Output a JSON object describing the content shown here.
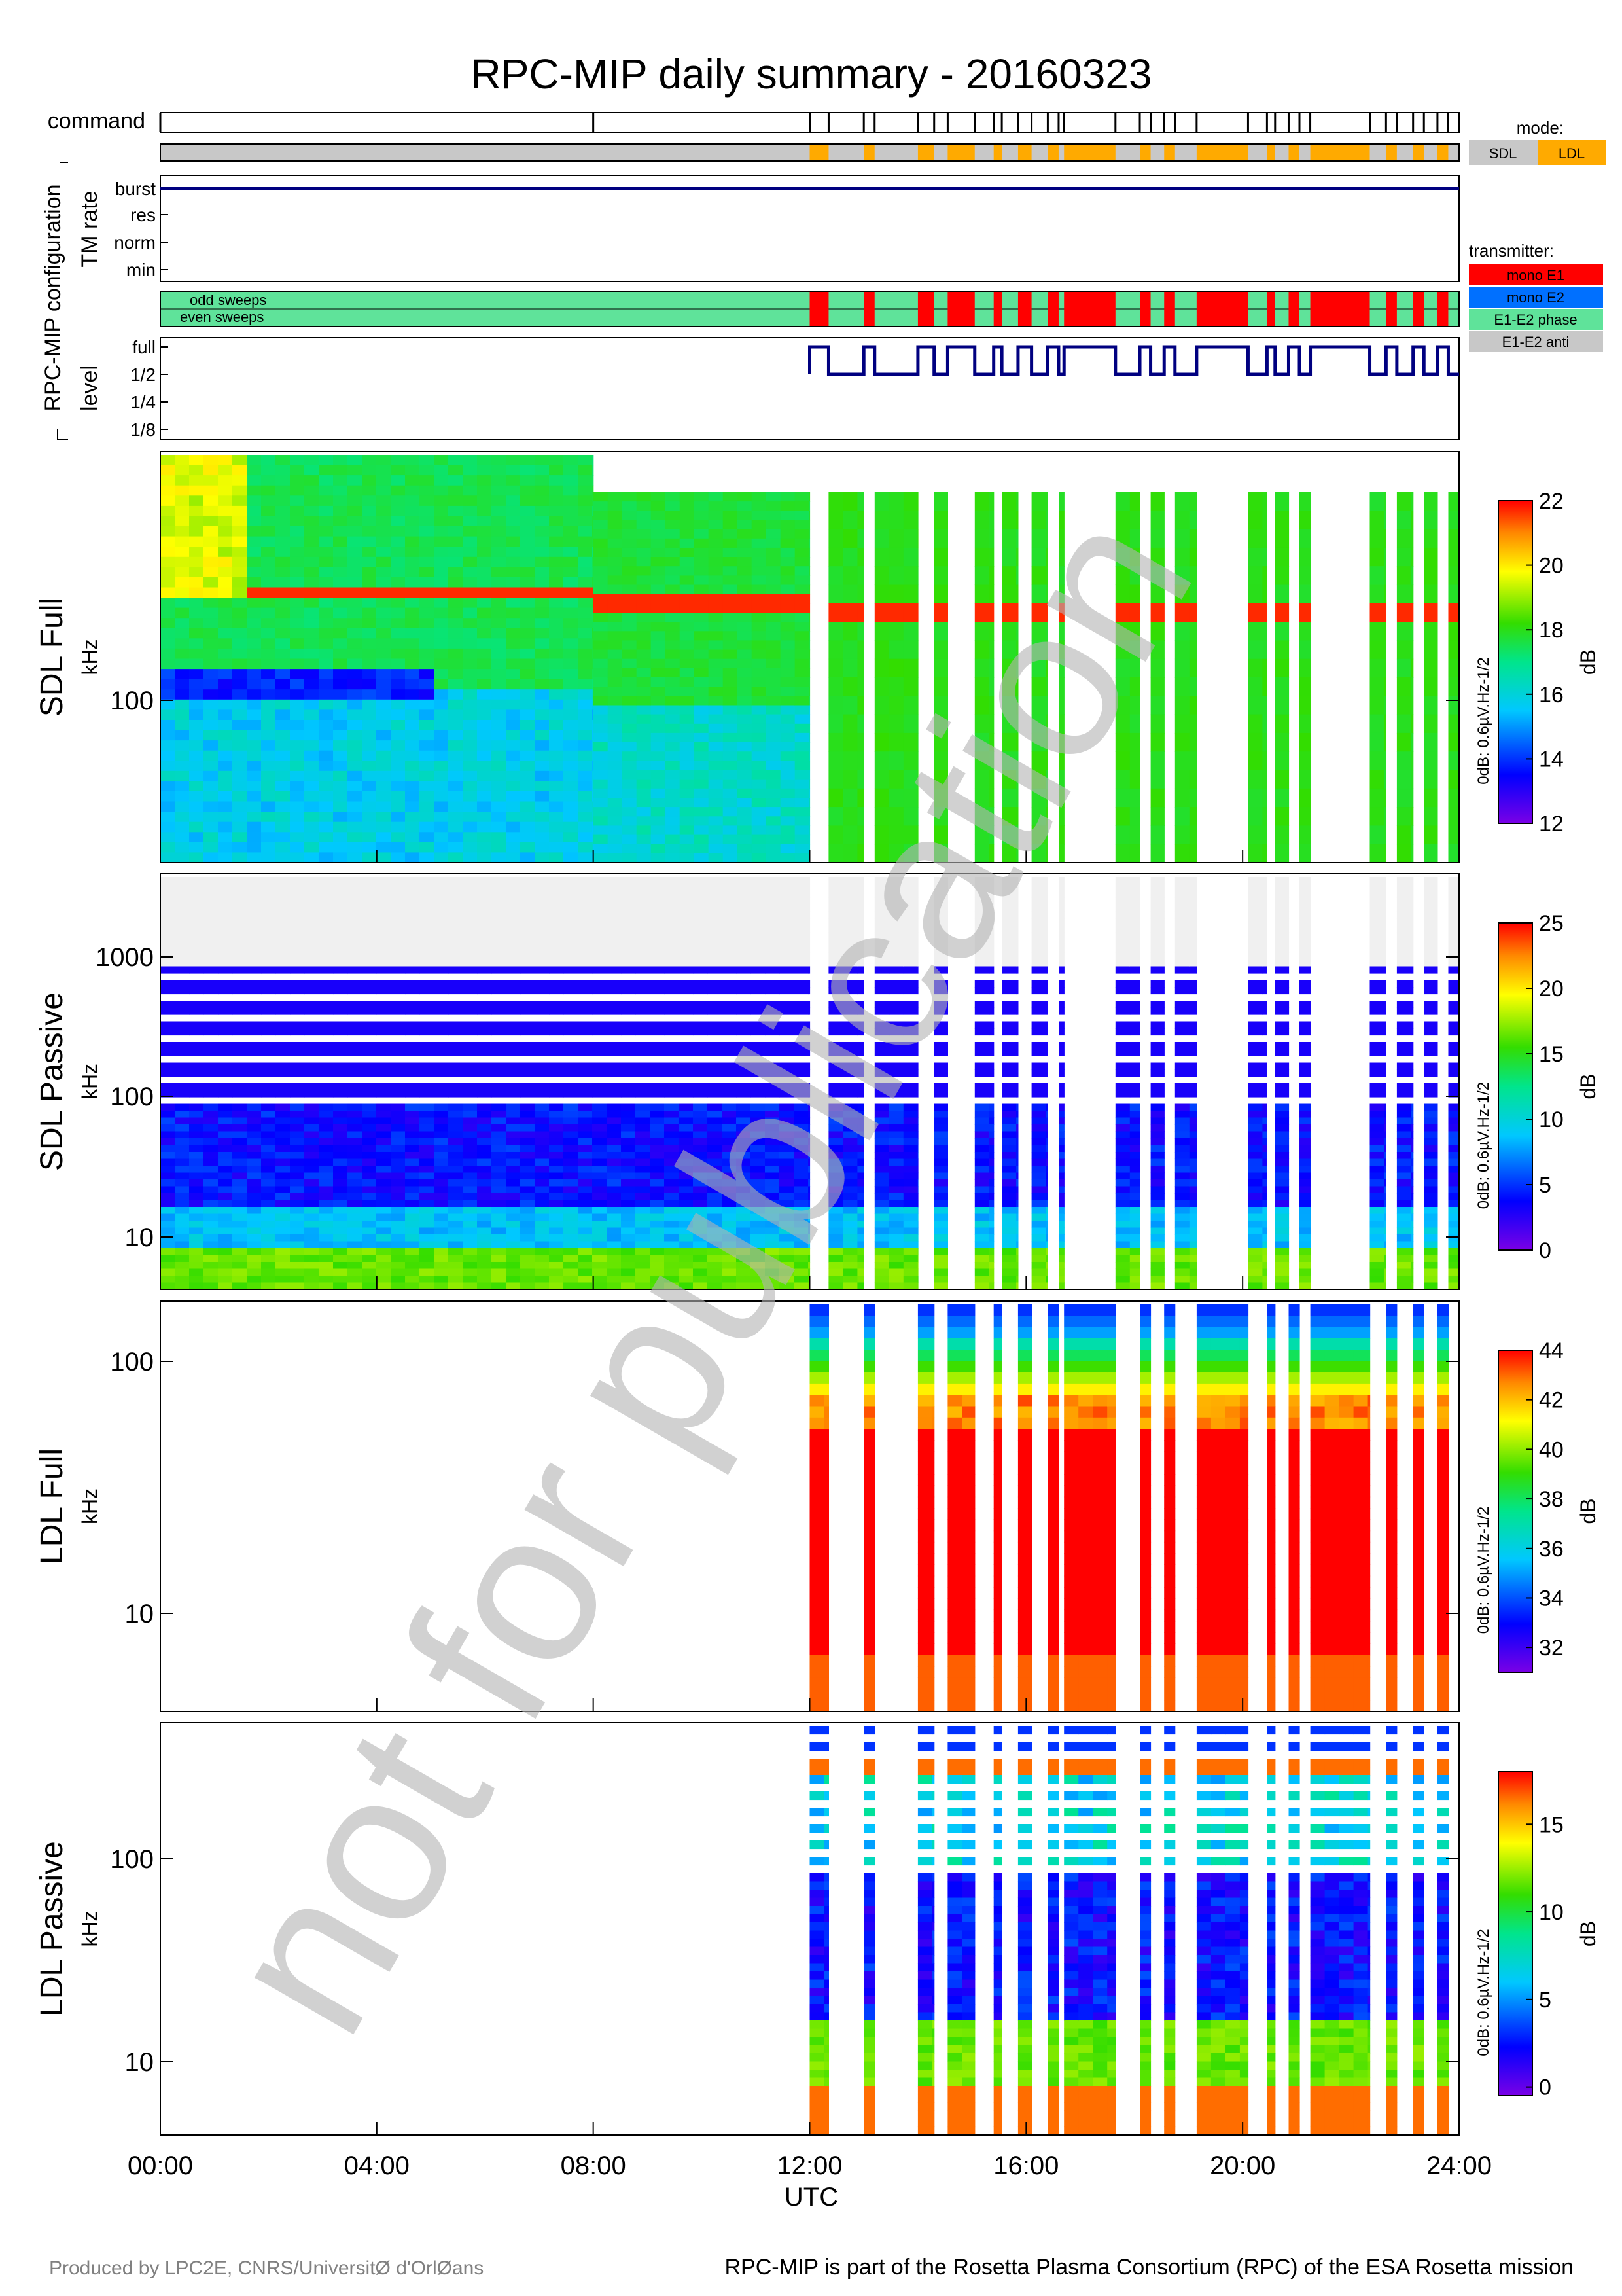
{
  "title": "RPC-MIP daily summary - 20160323",
  "watermark": "not for publication",
  "footer": {
    "left": "Produced by LPC2E, CNRS/UniversitØ d'OrlØans",
    "right": "RPC-MIP is part of the Rosetta Plasma Consortium (RPC) of the ESA Rosetta mission"
  },
  "config": {
    "group_label": "RPC-MIP configuration",
    "command_label": "command",
    "tm_label": "TM rate",
    "tm_ticks": [
      "burst",
      "res",
      "norm",
      "min"
    ],
    "sweep_labels": [
      "odd sweeps",
      "even sweeps"
    ],
    "level_label": "level",
    "level_ticks": [
      "full",
      "1/2",
      "1/4",
      "1/8"
    ],
    "mode_legend": {
      "title": "mode:",
      "items": [
        {
          "label": "SDL",
          "color": "#c8c8c8"
        },
        {
          "label": "LDL",
          "color": "#ffaa00"
        }
      ]
    },
    "transmitter_legend": {
      "title": "transmitter:",
      "items": [
        {
          "label": "mono E1",
          "color": "#ff0000"
        },
        {
          "label": "mono E2",
          "color": "#0070ff"
        },
        {
          "label": "E1-E2 phase",
          "color": "#5fe39a"
        },
        {
          "label": "E1-E2 anti",
          "color": "#c8c8c8"
        }
      ]
    },
    "ldl_intervals_utc": [
      [
        12.0,
        12.35
      ],
      [
        13.0,
        13.2
      ],
      [
        14.0,
        14.3
      ],
      [
        14.55,
        15.05
      ],
      [
        15.4,
        15.55
      ],
      [
        15.85,
        16.1
      ],
      [
        16.4,
        16.6
      ],
      [
        16.7,
        17.65
      ],
      [
        18.1,
        18.3
      ],
      [
        18.55,
        18.75
      ],
      [
        19.15,
        20.1
      ],
      [
        20.45,
        20.6
      ],
      [
        20.85,
        21.05
      ],
      [
        21.25,
        22.35
      ],
      [
        22.65,
        22.85
      ],
      [
        23.15,
        23.35
      ],
      [
        23.6,
        23.8
      ]
    ],
    "command_times_utc": [
      0.0,
      8.0,
      12.0,
      12.35,
      13.0,
      13.2,
      14.0,
      14.3,
      14.55,
      15.05,
      15.4,
      15.55,
      15.85,
      16.1,
      16.4,
      16.6,
      16.7,
      17.65,
      18.1,
      18.3,
      18.55,
      18.75,
      19.15,
      20.1,
      20.45,
      20.6,
      20.85,
      21.05,
      21.25,
      22.35,
      22.65,
      22.85,
      23.15,
      23.35,
      23.6,
      23.8,
      24.0
    ],
    "tm_rate_value": "burst"
  },
  "chart_data": [
    {
      "type": "heatmap",
      "panel": "SDL Full",
      "ylabel": "kHz",
      "yticks": [
        "100"
      ],
      "colorbar": {
        "min": 12,
        "max": 22,
        "ticks": [
          12,
          14,
          16,
          18,
          20,
          22
        ],
        "unit": "dB",
        "ref": "0dB: 0.6µV.Hz-1/2"
      },
      "gap_intervals_utc": [
        [
          12.0,
          12.35
        ],
        [
          13.0,
          13.2
        ],
        [
          14.0,
          14.3
        ],
        [
          14.55,
          15.05
        ],
        [
          15.4,
          15.55
        ],
        [
          15.85,
          16.1
        ],
        [
          16.4,
          16.6
        ],
        [
          16.7,
          17.65
        ],
        [
          18.1,
          18.3
        ],
        [
          18.55,
          18.75
        ],
        [
          19.15,
          20.1
        ],
        [
          20.45,
          20.6
        ],
        [
          20.85,
          21.05
        ],
        [
          21.25,
          22.35
        ],
        [
          22.65,
          22.85
        ],
        [
          23.15,
          23.35
        ],
        [
          23.6,
          23.8
        ]
      ]
    },
    {
      "type": "heatmap",
      "panel": "SDL Passive",
      "ylabel": "kHz",
      "yticks": [
        "10",
        "100",
        "1000"
      ],
      "colorbar": {
        "min": 0,
        "max": 25,
        "ticks": [
          0,
          5,
          10,
          15,
          20,
          25
        ],
        "unit": "dB",
        "ref": "0dB: 0.6µV.Hz-1/2"
      }
    },
    {
      "type": "heatmap",
      "panel": "LDL Full",
      "ylabel": "kHz",
      "yticks": [
        "10",
        "100"
      ],
      "colorbar": {
        "min": 31,
        "max": 44,
        "ticks": [
          32,
          34,
          36,
          38,
          40,
          42,
          44
        ],
        "unit": "dB",
        "ref": "0dB: 0.6µV.Hz-1/2"
      }
    },
    {
      "type": "heatmap",
      "panel": "LDL Passive",
      "ylabel": "kHz",
      "yticks": [
        "10",
        "100"
      ],
      "colorbar": {
        "min": -0.5,
        "max": 18,
        "ticks": [
          0,
          5,
          10,
          15
        ],
        "unit": "dB",
        "ref": "0dB: 0.6µV.Hz-1/2"
      }
    }
  ],
  "xaxis": {
    "label": "UTC",
    "ticks": [
      "00:00",
      "04:00",
      "08:00",
      "12:00",
      "16:00",
      "20:00",
      "24:00"
    ],
    "range_hours": [
      0,
      24
    ]
  }
}
